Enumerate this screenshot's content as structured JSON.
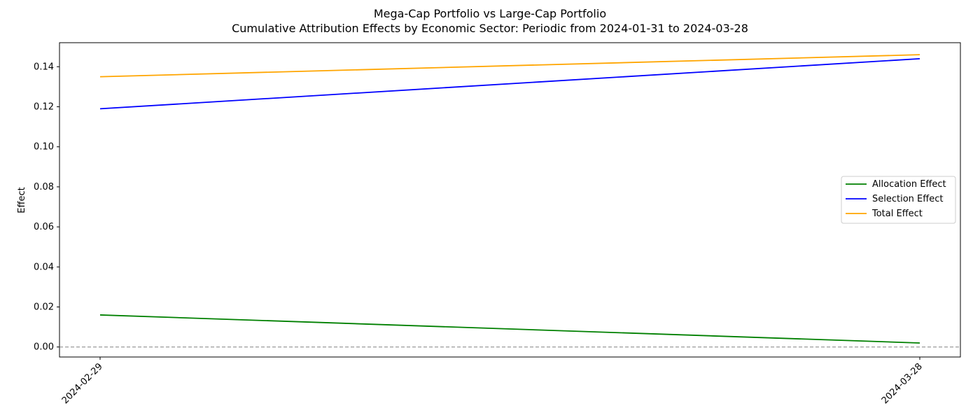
{
  "chart_data": {
    "type": "line",
    "title": "Mega-Cap Portfolio vs Large-Cap Portfolio",
    "subtitle": "Cumulative Attribution Effects by Economic Sector: Periodic from 2024-01-31 to 2024-03-28",
    "xlabel": "",
    "ylabel": "Effect",
    "x": [
      "2024-02-29",
      "2024-03-28"
    ],
    "xticks": [
      "2024-02-29",
      "2024-03-28"
    ],
    "yticks": [
      "0.00",
      "0.02",
      "0.04",
      "0.06",
      "0.08",
      "0.10",
      "0.12",
      "0.14"
    ],
    "ylim": [
      -0.005,
      0.152
    ],
    "grid": false,
    "reference_line": {
      "y": 0,
      "style": "dashed",
      "color": "#808080"
    },
    "legend_position": "center-right",
    "series": [
      {
        "name": "Allocation Effect",
        "color": "#008000",
        "values": [
          0.016,
          0.002
        ]
      },
      {
        "name": "Selection Effect",
        "color": "#0000ff",
        "values": [
          0.119,
          0.144
        ]
      },
      {
        "name": "Total Effect",
        "color": "#ffa500",
        "values": [
          0.135,
          0.146
        ]
      }
    ]
  }
}
